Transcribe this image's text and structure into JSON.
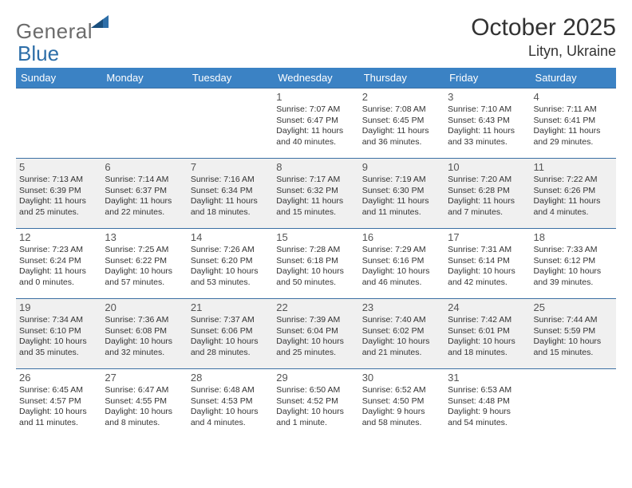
{
  "logo": {
    "word1": "General",
    "word2": "Blue"
  },
  "title": "October 2025",
  "subtitle": "Lityn, Ukraine",
  "header_bg": "#3b82c4",
  "header_fg": "#ffffff",
  "row_alt_bg": "#f0f0f0",
  "border_color": "#3b6fa3",
  "days": [
    "Sunday",
    "Monday",
    "Tuesday",
    "Wednesday",
    "Thursday",
    "Friday",
    "Saturday"
  ],
  "weeks": [
    [
      null,
      null,
      null,
      {
        "n": "1",
        "sr": "Sunrise: 7:07 AM",
        "ss": "Sunset: 6:47 PM",
        "d1": "Daylight: 11 hours",
        "d2": "and 40 minutes."
      },
      {
        "n": "2",
        "sr": "Sunrise: 7:08 AM",
        "ss": "Sunset: 6:45 PM",
        "d1": "Daylight: 11 hours",
        "d2": "and 36 minutes."
      },
      {
        "n": "3",
        "sr": "Sunrise: 7:10 AM",
        "ss": "Sunset: 6:43 PM",
        "d1": "Daylight: 11 hours",
        "d2": "and 33 minutes."
      },
      {
        "n": "4",
        "sr": "Sunrise: 7:11 AM",
        "ss": "Sunset: 6:41 PM",
        "d1": "Daylight: 11 hours",
        "d2": "and 29 minutes."
      }
    ],
    [
      {
        "n": "5",
        "sr": "Sunrise: 7:13 AM",
        "ss": "Sunset: 6:39 PM",
        "d1": "Daylight: 11 hours",
        "d2": "and 25 minutes."
      },
      {
        "n": "6",
        "sr": "Sunrise: 7:14 AM",
        "ss": "Sunset: 6:37 PM",
        "d1": "Daylight: 11 hours",
        "d2": "and 22 minutes."
      },
      {
        "n": "7",
        "sr": "Sunrise: 7:16 AM",
        "ss": "Sunset: 6:34 PM",
        "d1": "Daylight: 11 hours",
        "d2": "and 18 minutes."
      },
      {
        "n": "8",
        "sr": "Sunrise: 7:17 AM",
        "ss": "Sunset: 6:32 PM",
        "d1": "Daylight: 11 hours",
        "d2": "and 15 minutes."
      },
      {
        "n": "9",
        "sr": "Sunrise: 7:19 AM",
        "ss": "Sunset: 6:30 PM",
        "d1": "Daylight: 11 hours",
        "d2": "and 11 minutes."
      },
      {
        "n": "10",
        "sr": "Sunrise: 7:20 AM",
        "ss": "Sunset: 6:28 PM",
        "d1": "Daylight: 11 hours",
        "d2": "and 7 minutes."
      },
      {
        "n": "11",
        "sr": "Sunrise: 7:22 AM",
        "ss": "Sunset: 6:26 PM",
        "d1": "Daylight: 11 hours",
        "d2": "and 4 minutes."
      }
    ],
    [
      {
        "n": "12",
        "sr": "Sunrise: 7:23 AM",
        "ss": "Sunset: 6:24 PM",
        "d1": "Daylight: 11 hours",
        "d2": "and 0 minutes."
      },
      {
        "n": "13",
        "sr": "Sunrise: 7:25 AM",
        "ss": "Sunset: 6:22 PM",
        "d1": "Daylight: 10 hours",
        "d2": "and 57 minutes."
      },
      {
        "n": "14",
        "sr": "Sunrise: 7:26 AM",
        "ss": "Sunset: 6:20 PM",
        "d1": "Daylight: 10 hours",
        "d2": "and 53 minutes."
      },
      {
        "n": "15",
        "sr": "Sunrise: 7:28 AM",
        "ss": "Sunset: 6:18 PM",
        "d1": "Daylight: 10 hours",
        "d2": "and 50 minutes."
      },
      {
        "n": "16",
        "sr": "Sunrise: 7:29 AM",
        "ss": "Sunset: 6:16 PM",
        "d1": "Daylight: 10 hours",
        "d2": "and 46 minutes."
      },
      {
        "n": "17",
        "sr": "Sunrise: 7:31 AM",
        "ss": "Sunset: 6:14 PM",
        "d1": "Daylight: 10 hours",
        "d2": "and 42 minutes."
      },
      {
        "n": "18",
        "sr": "Sunrise: 7:33 AM",
        "ss": "Sunset: 6:12 PM",
        "d1": "Daylight: 10 hours",
        "d2": "and 39 minutes."
      }
    ],
    [
      {
        "n": "19",
        "sr": "Sunrise: 7:34 AM",
        "ss": "Sunset: 6:10 PM",
        "d1": "Daylight: 10 hours",
        "d2": "and 35 minutes."
      },
      {
        "n": "20",
        "sr": "Sunrise: 7:36 AM",
        "ss": "Sunset: 6:08 PM",
        "d1": "Daylight: 10 hours",
        "d2": "and 32 minutes."
      },
      {
        "n": "21",
        "sr": "Sunrise: 7:37 AM",
        "ss": "Sunset: 6:06 PM",
        "d1": "Daylight: 10 hours",
        "d2": "and 28 minutes."
      },
      {
        "n": "22",
        "sr": "Sunrise: 7:39 AM",
        "ss": "Sunset: 6:04 PM",
        "d1": "Daylight: 10 hours",
        "d2": "and 25 minutes."
      },
      {
        "n": "23",
        "sr": "Sunrise: 7:40 AM",
        "ss": "Sunset: 6:02 PM",
        "d1": "Daylight: 10 hours",
        "d2": "and 21 minutes."
      },
      {
        "n": "24",
        "sr": "Sunrise: 7:42 AM",
        "ss": "Sunset: 6:01 PM",
        "d1": "Daylight: 10 hours",
        "d2": "and 18 minutes."
      },
      {
        "n": "25",
        "sr": "Sunrise: 7:44 AM",
        "ss": "Sunset: 5:59 PM",
        "d1": "Daylight: 10 hours",
        "d2": "and 15 minutes."
      }
    ],
    [
      {
        "n": "26",
        "sr": "Sunrise: 6:45 AM",
        "ss": "Sunset: 4:57 PM",
        "d1": "Daylight: 10 hours",
        "d2": "and 11 minutes."
      },
      {
        "n": "27",
        "sr": "Sunrise: 6:47 AM",
        "ss": "Sunset: 4:55 PM",
        "d1": "Daylight: 10 hours",
        "d2": "and 8 minutes."
      },
      {
        "n": "28",
        "sr": "Sunrise: 6:48 AM",
        "ss": "Sunset: 4:53 PM",
        "d1": "Daylight: 10 hours",
        "d2": "and 4 minutes."
      },
      {
        "n": "29",
        "sr": "Sunrise: 6:50 AM",
        "ss": "Sunset: 4:52 PM",
        "d1": "Daylight: 10 hours",
        "d2": "and 1 minute."
      },
      {
        "n": "30",
        "sr": "Sunrise: 6:52 AM",
        "ss": "Sunset: 4:50 PM",
        "d1": "Daylight: 9 hours",
        "d2": "and 58 minutes."
      },
      {
        "n": "31",
        "sr": "Sunrise: 6:53 AM",
        "ss": "Sunset: 4:48 PM",
        "d1": "Daylight: 9 hours",
        "d2": "and 54 minutes."
      },
      null
    ]
  ]
}
